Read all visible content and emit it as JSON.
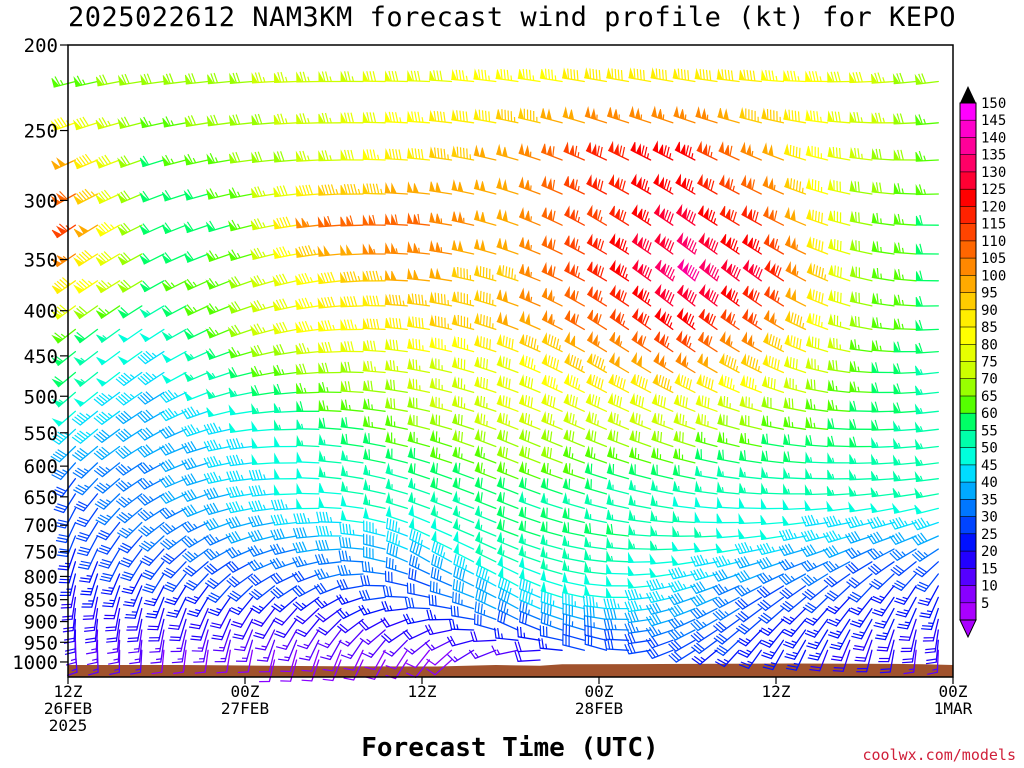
{
  "title": "2025022612 NAM3KM forecast wind profile (kt) for KEPO",
  "credit": "coolwx.com/models",
  "chart_data": {
    "type": "wind-barb time-height section",
    "title": "2025022612 NAM3KM forecast wind profile (kt) for KEPO",
    "xlabel": "Forecast Time (UTC)",
    "ylabel": "",
    "units": "kt",
    "y_axis": {
      "scale": "log-pressure",
      "range": [
        1040,
        200
      ],
      "ticks": [
        200,
        250,
        300,
        350,
        400,
        450,
        500,
        550,
        600,
        650,
        700,
        750,
        800,
        850,
        900,
        950,
        1000
      ]
    },
    "x_axis": {
      "range_hours": [
        0,
        60
      ],
      "ticks": [
        {
          "hour": 0,
          "lines": [
            "12Z",
            "26FEB",
            "2025"
          ]
        },
        {
          "hour": 12,
          "lines": [
            "00Z",
            "27FEB"
          ]
        },
        {
          "hour": 24,
          "lines": [
            "12Z"
          ]
        },
        {
          "hour": 36,
          "lines": [
            "00Z",
            "28FEB"
          ]
        },
        {
          "hour": 48,
          "lines": [
            "12Z"
          ]
        },
        {
          "hour": 60,
          "lines": [
            "00Z",
            "1MAR"
          ]
        }
      ]
    },
    "colorbar": {
      "values": [
        150,
        145,
        140,
        135,
        130,
        125,
        120,
        115,
        110,
        105,
        100,
        95,
        90,
        85,
        80,
        75,
        70,
        65,
        60,
        55,
        50,
        45,
        40,
        35,
        30,
        25,
        20,
        15,
        10,
        5
      ],
      "colors": [
        "#ff00ff",
        "#ff00cc",
        "#ff0099",
        "#ff0066",
        "#ff0033",
        "#ff0000",
        "#ff2200",
        "#ff4400",
        "#ff6600",
        "#ff8800",
        "#ffaa00",
        "#ffcc00",
        "#ffee00",
        "#ffff00",
        "#e6ff00",
        "#ccff00",
        "#99ff00",
        "#55ff00",
        "#00ff66",
        "#00ffaa",
        "#00ffdd",
        "#00ddff",
        "#00aaff",
        "#0077ff",
        "#0044ff",
        "#0011ff",
        "#2200ff",
        "#5500ff",
        "#8800ff",
        "#aa00ff"
      ]
    },
    "surface_pressure": [
      {
        "hour": 0,
        "p": 1008
      },
      {
        "hour": 7.5,
        "p": 1008
      },
      {
        "hour": 11,
        "p": 1009
      },
      {
        "hour": 13.5,
        "p": 1010
      },
      {
        "hour": 18,
        "p": 1011
      },
      {
        "hour": 25,
        "p": 1012
      },
      {
        "hour": 29,
        "p": 1008
      },
      {
        "hour": 32,
        "p": 1010
      },
      {
        "hour": 33.5,
        "p": 1006
      },
      {
        "hour": 42,
        "p": 1005
      },
      {
        "hour": 49,
        "p": 1004
      },
      {
        "hour": 56,
        "p": 1005
      },
      {
        "hour": 58,
        "p": 1006
      },
      {
        "hour": 60,
        "p": 1008
      }
    ],
    "wind_field": {
      "levels_hpa": [
        220,
        270,
        320,
        370,
        420,
        470,
        520,
        570,
        620,
        670,
        720,
        770,
        820,
        870,
        920,
        970
      ],
      "hours": [
        0,
        6,
        12,
        18,
        24,
        30,
        36,
        42,
        48,
        54,
        60
      ],
      "speed_kt": [
        [
          65,
          70,
          72,
          75,
          80,
          85,
          88,
          90,
          88,
          80,
          65
        ],
        [
          105,
          62,
          68,
          75,
          90,
          100,
          120,
          125,
          100,
          75,
          65
        ],
        [
          120,
          58,
          60,
          112,
          110,
          100,
          115,
          130,
          115,
          70,
          60
        ],
        [
          95,
          62,
          68,
          90,
          100,
          95,
          120,
          140,
          125,
          70,
          60
        ],
        [
          65,
          48,
          70,
          85,
          90,
          98,
          110,
          125,
          110,
          70,
          60
        ],
        [
          60,
          42,
          60,
          70,
          75,
          80,
          95,
          105,
          90,
          65,
          55
        ],
        [
          50,
          40,
          50,
          62,
          70,
          78,
          80,
          82,
          72,
          62,
          55
        ],
        [
          40,
          38,
          45,
          55,
          65,
          72,
          72,
          70,
          62,
          58,
          55
        ],
        [
          32,
          35,
          45,
          52,
          58,
          65,
          62,
          58,
          55,
          55,
          55
        ],
        [
          30,
          35,
          42,
          50,
          55,
          58,
          55,
          52,
          50,
          50,
          50
        ],
        [
          28,
          32,
          38,
          42,
          48,
          58,
          60,
          55,
          48,
          42,
          40
        ],
        [
          25,
          30,
          32,
          35,
          40,
          55,
          55,
          50,
          40,
          32,
          30
        ],
        [
          22,
          25,
          28,
          30,
          30,
          48,
          52,
          45,
          32,
          28,
          25
        ],
        [
          20,
          22,
          22,
          22,
          28,
          40,
          48,
          40,
          28,
          25,
          22
        ],
        [
          18,
          15,
          15,
          15,
          18,
          30,
          35,
          35,
          25,
          22,
          20
        ],
        [
          15,
          12,
          10,
          10,
          10,
          15,
          30,
          28,
          25,
          20,
          15
        ]
      ],
      "direction_deg": [
        [
          255,
          262,
          265,
          270,
          272,
          278,
          280,
          280,
          275,
          268,
          262
        ],
        [
          245,
          252,
          262,
          268,
          275,
          285,
          295,
          298,
          292,
          278,
          265
        ],
        [
          235,
          245,
          255,
          265,
          275,
          288,
          300,
          305,
          298,
          282,
          268
        ],
        [
          235,
          240,
          250,
          262,
          275,
          288,
          300,
          310,
          305,
          285,
          268
        ],
        [
          232,
          236,
          250,
          265,
          278,
          290,
          302,
          308,
          302,
          282,
          265
        ],
        [
          230,
          235,
          255,
          268,
          280,
          290,
          300,
          302,
          295,
          275,
          262
        ],
        [
          228,
          238,
          260,
          272,
          282,
          290,
          295,
          292,
          285,
          272,
          262
        ],
        [
          225,
          240,
          262,
          275,
          285,
          292,
          292,
          288,
          280,
          270,
          262
        ],
        [
          215,
          240,
          262,
          275,
          288,
          292,
          288,
          282,
          275,
          268,
          262
        ],
        [
          205,
          235,
          258,
          272,
          290,
          292,
          285,
          278,
          270,
          262,
          255
        ],
        [
          200,
          225,
          250,
          268,
          295,
          292,
          280,
          270,
          262,
          252,
          245
        ],
        [
          195,
          215,
          240,
          260,
          300,
          295,
          278,
          262,
          252,
          240,
          225
        ],
        [
          190,
          205,
          225,
          245,
          290,
          300,
          278,
          255,
          240,
          225,
          205
        ],
        [
          185,
          195,
          210,
          230,
          270,
          300,
          280,
          250,
          230,
          215,
          195
        ],
        [
          180,
          190,
          200,
          215,
          240,
          295,
          285,
          245,
          220,
          205,
          185
        ],
        [
          175,
          185,
          190,
          200,
          215,
          255,
          290,
          240,
          210,
          195,
          180
        ]
      ]
    }
  }
}
